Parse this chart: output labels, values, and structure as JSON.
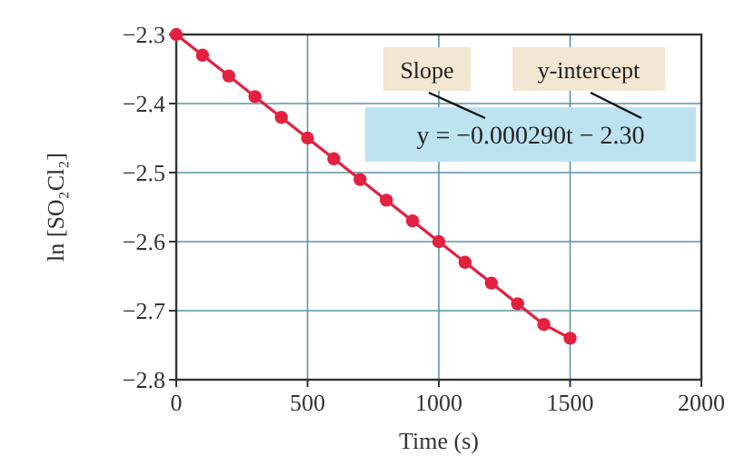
{
  "chart_data": {
    "type": "line",
    "xlabel": "Time (s)",
    "ylabel": "ln [SO₂Cl₂]",
    "x": [
      0,
      100,
      200,
      300,
      400,
      500,
      600,
      700,
      800,
      900,
      1000,
      1100,
      1200,
      1300,
      1400,
      1500
    ],
    "series": [
      {
        "color": "#e3203f",
        "values": [
          -2.3,
          -2.33,
          -2.36,
          -2.39,
          -2.42,
          -2.45,
          -2.48,
          -2.51,
          -2.54,
          -2.57,
          -2.6,
          -2.63,
          -2.66,
          -2.69,
          -2.72,
          -2.74
        ]
      }
    ],
    "xlim": [
      0,
      2000
    ],
    "xticks": [
      0,
      500,
      1000,
      1500,
      2000
    ],
    "ylim": [
      -2.8,
      -2.3
    ],
    "yticks": [
      {
        "value": -2.8,
        "label": "−2.8"
      },
      {
        "value": -2.7,
        "label": "−2.7"
      },
      {
        "value": -2.6,
        "label": "−2.6"
      },
      {
        "value": -2.5,
        "label": "−2.5"
      },
      {
        "value": -2.4,
        "label": "−2.4"
      },
      {
        "value": -2.3,
        "label": "−2.3"
      }
    ],
    "grid": true,
    "marker": "circle",
    "line_style": "solid",
    "annotations": [
      "Slope",
      "y-intercept",
      "y = −0.000290t − 2.30"
    ]
  }
}
